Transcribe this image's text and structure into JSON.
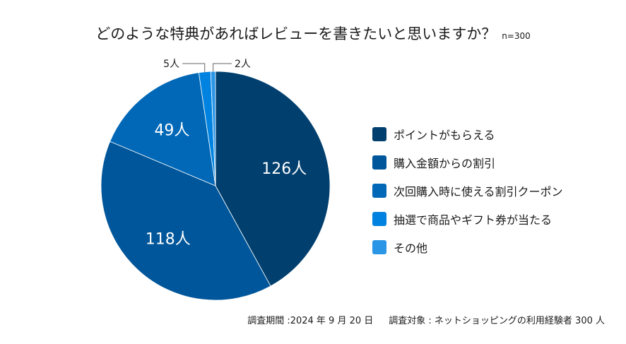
{
  "chart_data": {
    "type": "pie",
    "title": "どのような特典があればレビューを書きたいと思いますか？",
    "sample_note": "n=300",
    "unit": "人",
    "categories": [
      "ポイントがもらえる",
      "購入金額からの割引",
      "次回購入時に使える割引クーポン",
      "抽選で商品やギフト券が当たる",
      "その他"
    ],
    "values": [
      126,
      118,
      49,
      5,
      2
    ],
    "colors": [
      "#003f6e",
      "#00569a",
      "#0068b7",
      "#0083e0",
      "#2b95e6"
    ],
    "legend_position": "right",
    "start": "top, clockwise"
  },
  "footer": {
    "period": "調査期間 :2024 年 9 月 20 日",
    "target": "調査対象 : ネットショッピングの利用経験者 300 人"
  }
}
